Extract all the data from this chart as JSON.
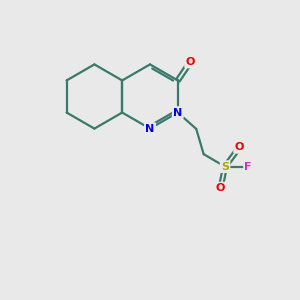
{
  "background_color": "#e9e9e9",
  "bond_color": "#3a7a6a",
  "bond_width": 1.6,
  "atom_colors": {
    "N": "#0000ee",
    "O": "#ee0000",
    "S": "#aaaa00",
    "F": "#cc33cc",
    "C": "#3a7a6a"
  },
  "font_size_atom": 8.0,
  "fig_size": [
    3.0,
    3.0
  ],
  "dpi": 100,
  "xlim": [
    0,
    10
  ],
  "ylim": [
    0,
    10
  ]
}
